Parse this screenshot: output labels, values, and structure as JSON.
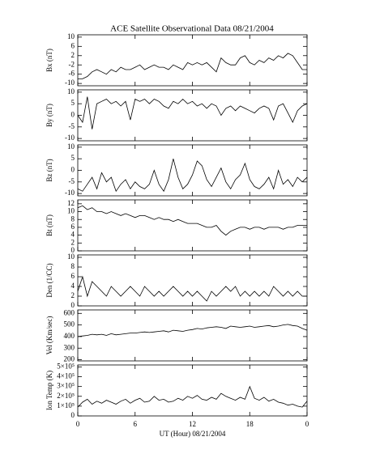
{
  "title": "ACE Satellite Observational Data   08/21/2004",
  "chart_data": [
    {
      "type": "line",
      "ylabel": "Bx (nT)",
      "color": "#000000",
      "ylim": [
        -11,
        11
      ],
      "yticks": [
        -10,
        -6,
        -2,
        2,
        6,
        10
      ],
      "x": [
        0,
        0.5,
        1,
        1.5,
        2,
        2.5,
        3,
        3.5,
        4,
        4.5,
        5,
        5.5,
        6,
        6.5,
        7,
        7.5,
        8,
        8.5,
        9,
        9.5,
        10,
        10.5,
        11,
        11.5,
        12,
        12.5,
        13,
        13.5,
        14,
        14.5,
        15,
        15.5,
        16,
        16.5,
        17,
        17.5,
        18,
        18.5,
        19,
        19.5,
        20,
        20.5,
        21,
        21.5,
        22,
        22.5,
        23,
        23.5,
        24
      ],
      "values": [
        -8,
        -8,
        -7,
        -5,
        -4,
        -5,
        -6,
        -4,
        -5,
        -3,
        -4,
        -4,
        -3,
        -2,
        -4,
        -3,
        -2,
        -3,
        -3,
        -4,
        -2,
        -3,
        -4,
        -1,
        -2,
        -1,
        -2,
        -1,
        -3,
        -5,
        1,
        -1,
        -2,
        -2,
        1,
        2,
        -1,
        -2,
        0,
        -1,
        1,
        0,
        2,
        1,
        3,
        2,
        -1,
        -4,
        -4
      ]
    },
    {
      "type": "line",
      "ylabel": "By (nT)",
      "color": "#000000",
      "ylim": [
        -11,
        11
      ],
      "yticks": [
        -10,
        -5,
        0,
        5,
        10
      ],
      "x": [
        0,
        0.5,
        1,
        1.5,
        2,
        2.5,
        3,
        3.5,
        4,
        4.5,
        5,
        5.5,
        6,
        6.5,
        7,
        7.5,
        8,
        8.5,
        9,
        9.5,
        10,
        10.5,
        11,
        11.5,
        12,
        12.5,
        13,
        13.5,
        14,
        14.5,
        15,
        15.5,
        16,
        16.5,
        17,
        17.5,
        18,
        18.5,
        19,
        19.5,
        20,
        20.5,
        21,
        21.5,
        22,
        22.5,
        23,
        23.5,
        24
      ],
      "values": [
        0,
        -3,
        8,
        -6,
        5,
        6,
        7,
        5,
        6,
        4,
        6,
        -2,
        7,
        6,
        7,
        5,
        7,
        6,
        4,
        3,
        6,
        5,
        7,
        5,
        6,
        4,
        5,
        3,
        5,
        4,
        0,
        3,
        4,
        2,
        4,
        3,
        2,
        1,
        3,
        4,
        3,
        -2,
        4,
        5,
        1,
        -3,
        2,
        4,
        5
      ]
    },
    {
      "type": "line",
      "ylabel": "Bz (nT)",
      "color": "#000000",
      "ylim": [
        -11,
        11
      ],
      "yticks": [
        -10,
        -5,
        0,
        5,
        10
      ],
      "x": [
        0,
        0.5,
        1,
        1.5,
        2,
        2.5,
        3,
        3.5,
        4,
        4.5,
        5,
        5.5,
        6,
        6.5,
        7,
        7.5,
        8,
        8.5,
        9,
        9.5,
        10,
        10.5,
        11,
        11.5,
        12,
        12.5,
        13,
        13.5,
        14,
        14.5,
        15,
        15.5,
        16,
        16.5,
        17,
        17.5,
        18,
        18.5,
        19,
        19.5,
        20,
        20.5,
        21,
        21.5,
        22,
        22.5,
        23,
        23.5,
        24
      ],
      "values": [
        -8,
        -9,
        -6,
        -3,
        -8,
        -1,
        -5,
        -3,
        -9,
        -6,
        -4,
        -8,
        -5,
        -7,
        -8,
        -6,
        0,
        -6,
        -9,
        -4,
        5,
        -3,
        -8,
        -6,
        -2,
        4,
        2,
        -4,
        -7,
        -3,
        1,
        -5,
        -8,
        -4,
        -2,
        3,
        -4,
        -7,
        -8,
        -6,
        -3,
        -8,
        0,
        -6,
        -4,
        -7,
        -3,
        -5,
        -3
      ]
    },
    {
      "type": "line",
      "ylabel": "Bt (nT)",
      "color": "#000000",
      "ylim": [
        0,
        13
      ],
      "yticks": [
        0,
        2,
        4,
        6,
        8,
        10,
        12
      ],
      "x": [
        0,
        0.5,
        1,
        1.5,
        2,
        2.5,
        3,
        3.5,
        4,
        4.5,
        5,
        5.5,
        6,
        6.5,
        7,
        7.5,
        8,
        8.5,
        9,
        9.5,
        10,
        10.5,
        11,
        11.5,
        12,
        12.5,
        13,
        13.5,
        14,
        14.5,
        15,
        15.5,
        16,
        16.5,
        17,
        17.5,
        18,
        18.5,
        19,
        19.5,
        20,
        20.5,
        21,
        21.5,
        22,
        22.5,
        23,
        23.5,
        24
      ],
      "values": [
        11,
        11.5,
        10.5,
        11,
        10,
        10,
        9.5,
        10,
        9.5,
        9,
        9.5,
        9,
        8.5,
        9,
        9,
        8.5,
        8,
        8.5,
        8,
        8,
        7.5,
        8,
        7.5,
        7,
        7,
        7,
        6.5,
        6,
        6,
        6.5,
        5,
        4,
        5,
        5.5,
        6,
        6,
        5.5,
        6,
        6,
        5.5,
        6,
        6,
        6,
        5.5,
        6,
        6,
        6.5,
        6.5,
        6.5
      ]
    },
    {
      "type": "line",
      "ylabel": "Den (1/CC)",
      "color": "#000000",
      "ylim": [
        0,
        10.5
      ],
      "yticks": [
        0,
        2,
        4,
        6,
        8,
        10
      ],
      "x": [
        0,
        0.5,
        1,
        1.5,
        2,
        2.5,
        3,
        3.5,
        4,
        4.5,
        5,
        5.5,
        6,
        6.5,
        7,
        7.5,
        8,
        8.5,
        9,
        9.5,
        10,
        10.5,
        11,
        11.5,
        12,
        12.5,
        13,
        13.5,
        14,
        14.5,
        15,
        15.5,
        16,
        16.5,
        17,
        17.5,
        18,
        18.5,
        19,
        19.5,
        20,
        20.5,
        21,
        21.5,
        22,
        22.5,
        23,
        23.5,
        24
      ],
      "values": [
        3,
        6,
        2,
        5,
        4,
        3,
        2,
        4,
        3,
        2,
        3,
        4,
        3,
        2,
        4,
        3,
        2,
        3,
        2,
        3,
        4,
        3,
        2,
        3,
        2,
        3,
        2,
        1,
        3,
        2,
        3,
        4,
        3,
        4,
        2,
        3,
        2,
        3,
        2,
        3,
        2,
        4,
        3,
        2,
        3,
        2,
        3,
        2,
        2
      ]
    },
    {
      "type": "line",
      "ylabel": "Vel (Km/sec)",
      "color": "#000000",
      "ylim": [
        190,
        630
      ],
      "yticks": [
        200,
        300,
        400,
        500,
        600
      ],
      "x": [
        0,
        0.5,
        1,
        1.5,
        2,
        2.5,
        3,
        3.5,
        4,
        4.5,
        5,
        5.5,
        6,
        6.5,
        7,
        7.5,
        8,
        8.5,
        9,
        9.5,
        10,
        10.5,
        11,
        11.5,
        12,
        12.5,
        13,
        13.5,
        14,
        14.5,
        15,
        15.5,
        16,
        16.5,
        17,
        17.5,
        18,
        18.5,
        19,
        19.5,
        20,
        20.5,
        21,
        21.5,
        22,
        22.5,
        23,
        23.5,
        24
      ],
      "values": [
        400,
        405,
        410,
        420,
        415,
        420,
        410,
        425,
        415,
        420,
        425,
        430,
        430,
        435,
        440,
        435,
        440,
        445,
        450,
        440,
        455,
        450,
        445,
        455,
        460,
        470,
        465,
        475,
        480,
        485,
        480,
        470,
        490,
        485,
        480,
        485,
        490,
        480,
        485,
        490,
        495,
        485,
        490,
        500,
        505,
        495,
        490,
        470,
        455
      ]
    },
    {
      "type": "line",
      "ylabel": "Ion Temp (K)",
      "xlabel": "UT (Hour)  08/21/2004",
      "color": "#000000",
      "ylim": [
        0,
        520000
      ],
      "yticks": [
        0,
        {
          "value": 100000,
          "label": "1×10⁵"
        },
        {
          "value": 200000,
          "label": "2×10⁵"
        },
        {
          "value": 300000,
          "label": "3×10⁵"
        },
        {
          "value": 400000,
          "label": "4×10⁵"
        },
        {
          "value": 500000,
          "label": "5×10⁵"
        }
      ],
      "xlim": [
        0,
        24
      ],
      "xticks": [
        0,
        6,
        12,
        18,
        {
          "value": 24,
          "label": "0"
        }
      ],
      "x": [
        0,
        0.5,
        1,
        1.5,
        2,
        2.5,
        3,
        3.5,
        4,
        4.5,
        5,
        5.5,
        6,
        6.5,
        7,
        7.5,
        8,
        8.5,
        9,
        9.5,
        10,
        10.5,
        11,
        11.5,
        12,
        12.5,
        13,
        13.5,
        14,
        14.5,
        15,
        15.5,
        16,
        16.5,
        17,
        17.5,
        18,
        18.5,
        19,
        19.5,
        20,
        20.5,
        21,
        21.5,
        22,
        22.5,
        23,
        23.5,
        24
      ],
      "values": [
        90000,
        140000,
        170000,
        120000,
        150000,
        130000,
        160000,
        140000,
        120000,
        150000,
        170000,
        130000,
        160000,
        180000,
        140000,
        150000,
        200000,
        160000,
        170000,
        140000,
        150000,
        180000,
        160000,
        200000,
        180000,
        210000,
        170000,
        160000,
        190000,
        170000,
        230000,
        200000,
        180000,
        160000,
        190000,
        170000,
        300000,
        180000,
        160000,
        190000,
        150000,
        170000,
        140000,
        130000,
        110000,
        120000,
        100000,
        90000,
        150000
      ]
    }
  ]
}
